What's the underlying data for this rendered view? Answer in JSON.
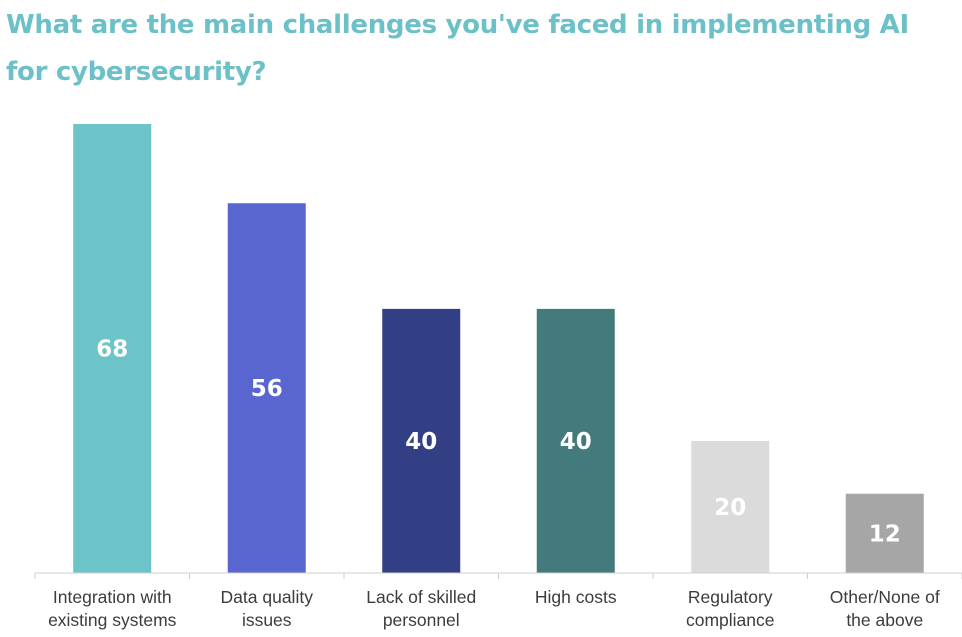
{
  "chart_data": {
    "type": "bar",
    "title": "What are the main challenges you've faced in implementing AI for cybersecurity?",
    "categories": [
      [
        "Integration with",
        "existing systems"
      ],
      [
        "Data quality",
        "issues"
      ],
      [
        "Lack of skilled",
        "personnel"
      ],
      [
        "High costs"
      ],
      [
        "Regulatory",
        "compliance"
      ],
      [
        "Other/None of",
        "the above"
      ]
    ],
    "values": [
      68,
      56,
      40,
      40,
      20,
      12
    ],
    "data_labels": [
      "68",
      "56",
      "40",
      "40",
      "20",
      "12"
    ],
    "colors": [
      "#6cc3c8",
      "#5a66cf",
      "#323f85",
      "#437b7c",
      "#dbdbdb",
      "#a6a6a6"
    ],
    "ylim": [
      0,
      68
    ],
    "xlabel": "",
    "ylabel": "",
    "grid": false,
    "legend": "none"
  }
}
